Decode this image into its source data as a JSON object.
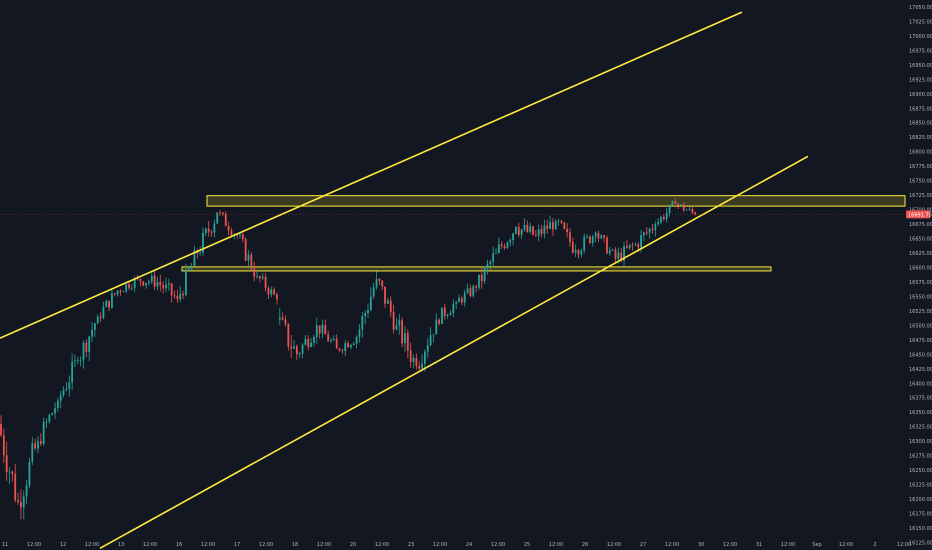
{
  "chart_data": {
    "type": "candlestick",
    "title": "",
    "xlabel": "",
    "ylabel": "",
    "ylim": [
      16112,
      17062
    ],
    "grid": false,
    "colors": {
      "background": "#131722",
      "up": "#26a69a",
      "down": "#ef5350",
      "drawing": "#ffeb3b",
      "zone_fill": "#5d5a22",
      "price_tag": "#ef5350",
      "axis_text": "#b2b5be"
    },
    "y_ticks": [
      "17050.00",
      "17025.00",
      "17000.00",
      "16975.00",
      "16950.00",
      "16925.00",
      "16900.00",
      "16875.00",
      "16850.00",
      "16825.00",
      "16800.00",
      "16775.00",
      "16750.00",
      "16725.00",
      "16700.00",
      "16675.00",
      "16650.00",
      "16625.00",
      "16600.00",
      "16575.00",
      "16550.00",
      "16525.00",
      "16500.00",
      "16475.00",
      "16450.00",
      "16425.00",
      "16400.00",
      "16375.00",
      "16350.00",
      "16325.00",
      "16300.00",
      "16275.00",
      "16250.00",
      "16225.00",
      "16200.00",
      "16175.00",
      "16150.00",
      "16125.00"
    ],
    "x_ticks": [
      "11",
      "12:00",
      "12",
      "12:00",
      "13",
      "12:00",
      "16",
      "12:00",
      "17",
      "12:00",
      "18",
      "12:00",
      "20",
      "12:00",
      "23",
      "12:00",
      "24",
      "12:00",
      "25",
      "12:00",
      "26",
      "12:00",
      "27",
      "12:00",
      "30",
      "12:00",
      "31",
      "12:00",
      "Sep",
      "12:00",
      "2",
      "12:00"
    ],
    "last_price": "16691.75",
    "sessions": [
      {
        "open": 16330,
        "high": 16345,
        "low": 16170,
        "close": 16195
      },
      {
        "open": 16195,
        "high": 16320,
        "low": 16165,
        "close": 16300
      },
      {
        "open": 16300,
        "high": 16385,
        "low": 16285,
        "close": 16370
      },
      {
        "open": 16370,
        "high": 16460,
        "low": 16355,
        "close": 16440
      },
      {
        "open": 16440,
        "high": 16530,
        "low": 16425,
        "close": 16515
      },
      {
        "open": 16515,
        "high": 16570,
        "low": 16500,
        "close": 16560
      },
      {
        "open": 16560,
        "high": 16595,
        "low": 16540,
        "close": 16580
      },
      {
        "open": 16580,
        "high": 16600,
        "low": 16535,
        "close": 16575
      },
      {
        "open": 16575,
        "high": 16600,
        "low": 16515,
        "close": 16545
      },
      {
        "open": 16545,
        "high": 16640,
        "low": 16540,
        "close": 16625
      },
      {
        "open": 16625,
        "high": 16712,
        "low": 16610,
        "close": 16695
      },
      {
        "open": 16695,
        "high": 16705,
        "low": 16640,
        "close": 16655
      },
      {
        "open": 16655,
        "high": 16660,
        "low": 16570,
        "close": 16585
      },
      {
        "open": 16585,
        "high": 16595,
        "low": 16530,
        "close": 16545
      },
      {
        "open": 16510,
        "high": 16530,
        "low": 16395,
        "close": 16450
      },
      {
        "open": 16450,
        "high": 16520,
        "low": 16430,
        "close": 16500
      },
      {
        "open": 16500,
        "high": 16510,
        "low": 16440,
        "close": 16460
      },
      {
        "open": 16460,
        "high": 16505,
        "low": 16440,
        "close": 16480
      },
      {
        "open": 16480,
        "high": 16595,
        "low": 16470,
        "close": 16580
      },
      {
        "open": 16580,
        "high": 16590,
        "low": 16480,
        "close": 16500
      },
      {
        "open": 16500,
        "high": 16520,
        "low": 16405,
        "close": 16430
      },
      {
        "open": 16430,
        "high": 16530,
        "low": 16420,
        "close": 16510
      },
      {
        "open": 16510,
        "high": 16560,
        "low": 16490,
        "close": 16540
      },
      {
        "open": 16540,
        "high": 16580,
        "low": 16520,
        "close": 16565
      },
      {
        "open": 16565,
        "high": 16640,
        "low": 16550,
        "close": 16625
      },
      {
        "open": 16625,
        "high": 16690,
        "low": 16605,
        "close": 16670
      },
      {
        "open": 16670,
        "high": 16712,
        "low": 16630,
        "close": 16655
      },
      {
        "open": 16655,
        "high": 16695,
        "low": 16620,
        "close": 16680
      },
      {
        "open": 16680,
        "high": 16690,
        "low": 16610,
        "close": 16630
      },
      {
        "open": 16630,
        "high": 16680,
        "low": 16610,
        "close": 16660
      },
      {
        "open": 16660,
        "high": 16665,
        "low": 16600,
        "close": 16615
      },
      {
        "open": 16615,
        "high": 16655,
        "low": 16580,
        "close": 16640
      },
      {
        "open": 16640,
        "high": 16680,
        "low": 16600,
        "close": 16675
      },
      {
        "open": 16675,
        "high": 16720,
        "low": 16665,
        "close": 16710
      },
      {
        "open": 16710,
        "high": 16722,
        "low": 16680,
        "close": 16692
      }
    ],
    "support_resistance_zones": [
      {
        "top": 16724,
        "bottom": 16706
      },
      {
        "top": 16601,
        "bottom": 16594
      }
    ],
    "trend_lines": [
      {
        "x_start": 0,
        "y_start": 16478,
        "x_end": 742,
        "y_end": 17041
      },
      {
        "x_start": 100,
        "y_start": 16115,
        "x_end": 808,
        "y_end": 16792
      }
    ]
  }
}
